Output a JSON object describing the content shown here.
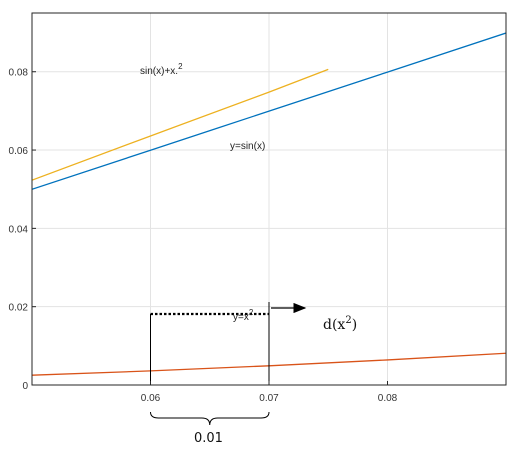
{
  "chart_data": {
    "type": "line",
    "title": "",
    "xlabel": "",
    "ylabel": "",
    "xlim": [
      0.05,
      0.09
    ],
    "ylim": [
      0,
      0.095
    ],
    "grid": true,
    "xticks": [
      0.06,
      0.07,
      0.08
    ],
    "xtick_labels": [
      "0.06",
      "0.07",
      "0.08"
    ],
    "yticks": [
      0,
      0.02,
      0.04,
      0.06,
      0.08
    ],
    "ytick_labels": [
      "0",
      "0.02",
      "0.04",
      "0.06",
      "0.08"
    ],
    "series": [
      {
        "name": "sin(x)+x.^2",
        "label_parts": {
          "base": "sin(x)+x.",
          "sup": "2"
        },
        "color": "#EDB120",
        "function": "sin(x)+x^2",
        "points": [
          [
            0.05,
            0.0523
          ],
          [
            0.06,
            0.0636
          ],
          [
            0.07,
            0.0748
          ],
          [
            0.075,
            0.0806
          ]
        ]
      },
      {
        "name": "y=sin(x)",
        "color": "#0072BD",
        "function": "sin(x)",
        "points": [
          [
            0.05,
            0.04998
          ],
          [
            0.06,
            0.05996
          ],
          [
            0.07,
            0.06994
          ],
          [
            0.08,
            0.07991
          ],
          [
            0.09,
            0.08988
          ]
        ]
      },
      {
        "name": "y=x^2",
        "label_parts": {
          "base": "y=x",
          "sup": "2"
        },
        "color": "#D95319",
        "function": "x^2",
        "points": [
          [
            0.05,
            0.0025
          ],
          [
            0.06,
            0.0036
          ],
          [
            0.07,
            0.0049
          ],
          [
            0.08,
            0.0064
          ],
          [
            0.09,
            0.0081
          ]
        ]
      }
    ],
    "annotations": {
      "dx_start": 0.06,
      "dx_end": 0.07,
      "bracket_label": "0.01",
      "increment_label": {
        "base": "d(x",
        "sup": "2",
        "tail": ")"
      }
    }
  }
}
